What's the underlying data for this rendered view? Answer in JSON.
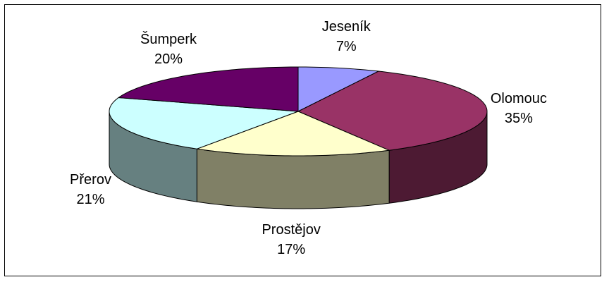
{
  "chart_data": {
    "type": "pie3d",
    "categories": [
      "Jeseník",
      "Olomouc",
      "Prostějov",
      "Přerov",
      "Šumperk"
    ],
    "values": [
      7,
      35,
      17,
      21,
      20
    ],
    "value_labels": [
      "7%",
      "35%",
      "17%",
      "21%",
      "20%"
    ],
    "colors": [
      "#9999ff",
      "#993366",
      "#ffffcc",
      "#ccffff",
      "#660066"
    ],
    "side_colors": [
      "#4d4d80",
      "#4d1a33",
      "#808066",
      "#668080",
      "#330033"
    ]
  }
}
